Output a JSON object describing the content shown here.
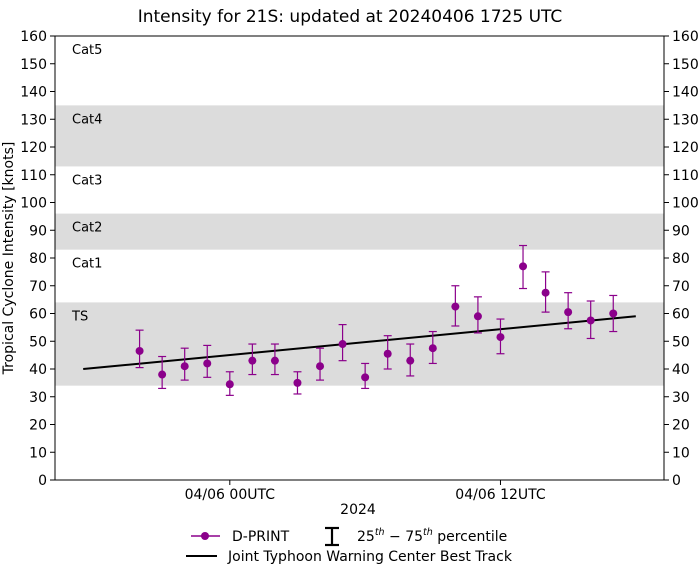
{
  "chart_data": {
    "type": "scatter",
    "title": "Intensity for 21S: updated at 20240406 1725 UTC",
    "xlabel": "2024",
    "ylabel": "Tropical Cyclone Intensity [knots]",
    "ylim": [
      0,
      160
    ],
    "yticks": [
      0,
      10,
      20,
      30,
      40,
      50,
      60,
      70,
      80,
      90,
      100,
      110,
      120,
      130,
      140,
      150,
      160
    ],
    "xlim": [
      -7.75,
      19.25
    ],
    "xticks": [
      {
        "value": 0,
        "label": "04/06 00UTC"
      },
      {
        "value": 12,
        "label": "04/06 12UTC"
      }
    ],
    "categories": [
      {
        "label": "Cat5",
        "low": 135,
        "high": 160,
        "shaded": false
      },
      {
        "label": "Cat4",
        "low": 113,
        "high": 135,
        "shaded": true
      },
      {
        "label": "Cat3",
        "low": 96,
        "high": 113,
        "shaded": false
      },
      {
        "label": "Cat2",
        "low": 83,
        "high": 96,
        "shaded": true
      },
      {
        "label": "Cat1",
        "low": 64,
        "high": 83,
        "shaded": false
      },
      {
        "label": "TS",
        "low": 34,
        "high": 64,
        "shaded": true
      }
    ],
    "series": [
      {
        "name": "D-PRINT",
        "color": "#8b008b",
        "x": [
          -4,
          -3,
          -2,
          -1,
          0,
          1,
          2,
          3,
          4,
          5,
          6,
          7,
          8,
          9,
          10,
          11,
          12,
          13,
          14,
          15,
          16,
          17
        ],
        "values": [
          46.5,
          38,
          41,
          42,
          34.5,
          43,
          43,
          35,
          41,
          49,
          37,
          45.5,
          43,
          47.5,
          62.5,
          59,
          51.5,
          77,
          67.5,
          60.5,
          57.5,
          60
        ],
        "p25": [
          40.5,
          33,
          36,
          37,
          30.5,
          38,
          38,
          31,
          36,
          43,
          33,
          40,
          37.5,
          42,
          55.5,
          53,
          45.5,
          69,
          60.5,
          54.5,
          51,
          53.5
        ],
        "p75": [
          54,
          44.5,
          47.5,
          48.5,
          39,
          49,
          49,
          39,
          47.5,
          56,
          42,
          52,
          49,
          53.5,
          70,
          66,
          58,
          84.5,
          75,
          67.5,
          64.5,
          66.5
        ]
      },
      {
        "name": "Joint Typhoon Warning Center Best Track",
        "color": "#000000",
        "x": [
          -6.5,
          18
        ],
        "values": [
          40,
          59
        ]
      }
    ],
    "legend": {
      "position": "bottom-center",
      "dprint_label": "D-PRINT",
      "percentile_label": "25th − 75th percentile",
      "best_track_label": "Joint Typhoon Warning Center Best Track"
    }
  }
}
